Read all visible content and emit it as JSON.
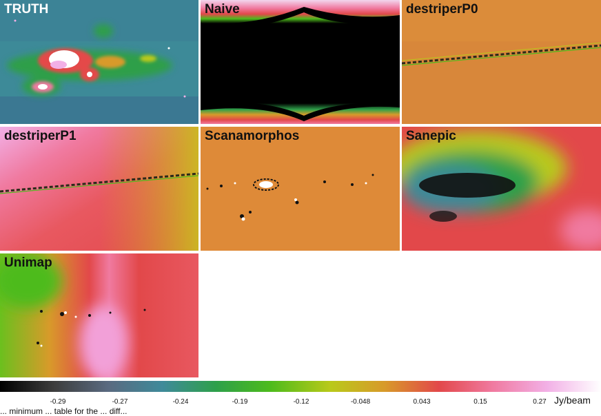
{
  "panels": [
    {
      "id": "truth",
      "label": "TRUTH",
      "style": "truth"
    },
    {
      "id": "naive",
      "label": "Naive",
      "style": "naive"
    },
    {
      "id": "destriperP0",
      "label": "destriperP0",
      "style": "p0"
    },
    {
      "id": "destriperP1",
      "label": "destriperP1",
      "style": "p1"
    },
    {
      "id": "scanamorphos",
      "label": "Scanamorphos",
      "style": "scana"
    },
    {
      "id": "sanepic",
      "label": "Sanepic",
      "style": "sanepic"
    },
    {
      "id": "unimap",
      "label": "Unimap",
      "style": "unimap"
    }
  ],
  "colorbar": {
    "unit": "Jy/beam",
    "ticks": [
      "-0.29",
      "-0.27",
      "-0.24",
      "-0.19",
      "-0.12",
      "-0.048",
      "0.043",
      "0.15",
      "0.27"
    ],
    "colors": [
      "#000000",
      "#3d3d3d",
      "#5a6a80",
      "#3f8a9a",
      "#2ea04a",
      "#4dbb1c",
      "#b9c91a",
      "#d89a2a",
      "#e2484a",
      "#f07aa0",
      "#f2b0e6",
      "#ffffff"
    ]
  },
  "caption": "... minimum ... table for the ... diff..."
}
